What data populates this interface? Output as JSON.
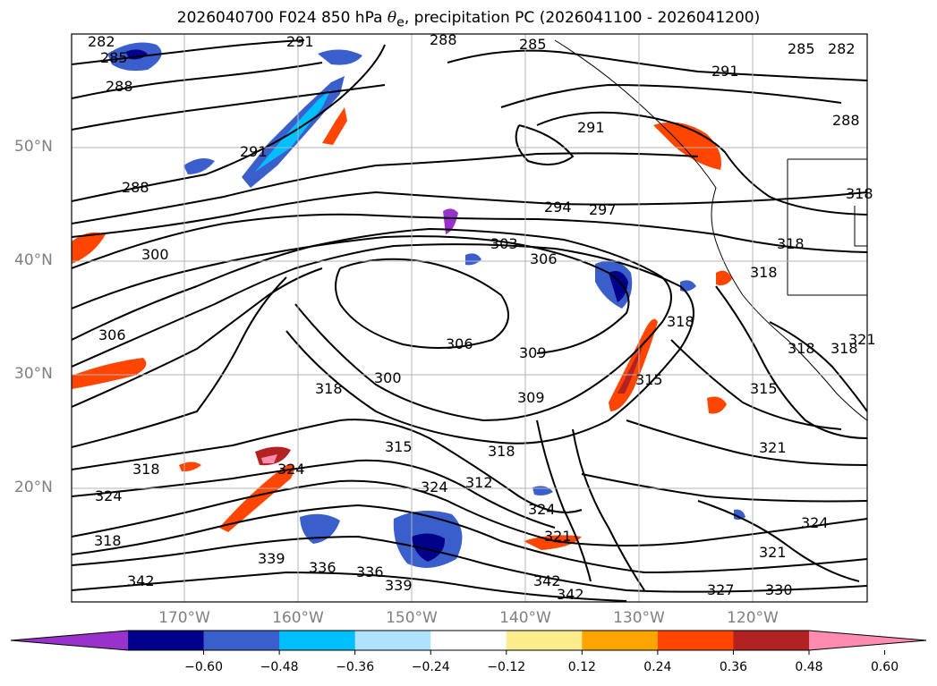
{
  "title": {
    "prefix": "2026040700 F024 850 hPa ",
    "theta": "θ",
    "theta_sub": "e",
    "suffix": ", precipitation PC (2026041100 - 2026041200)"
  },
  "map": {
    "lat_labels": [
      "50°N",
      "40°N",
      "30°N",
      "20°N"
    ],
    "lon_labels": [
      "170°W",
      "160°W",
      "150°W",
      "140°W",
      "130°W",
      "120°W"
    ],
    "contour_labels": [
      "282",
      "285",
      "288",
      "291",
      "294",
      "297",
      "300",
      "303",
      "306",
      "309",
      "312",
      "315",
      "318",
      "321",
      "324",
      "327",
      "330",
      "336",
      "339",
      "342"
    ],
    "gridlines": true
  },
  "colorbar": {
    "ticks": [
      "−0.60",
      "−0.48",
      "−0.36",
      "−0.24",
      "−0.12",
      "0.12",
      "0.24",
      "0.36",
      "0.48",
      "0.60"
    ],
    "colors": [
      "#9932cc",
      "#00008b",
      "#3a5fcd",
      "#00bfff",
      "#b0e2ff",
      "#ffffff",
      "#fdec8c",
      "#ffa500",
      "#ff4500",
      "#b22222",
      "#ff8cb0"
    ],
    "extend": "both"
  }
}
